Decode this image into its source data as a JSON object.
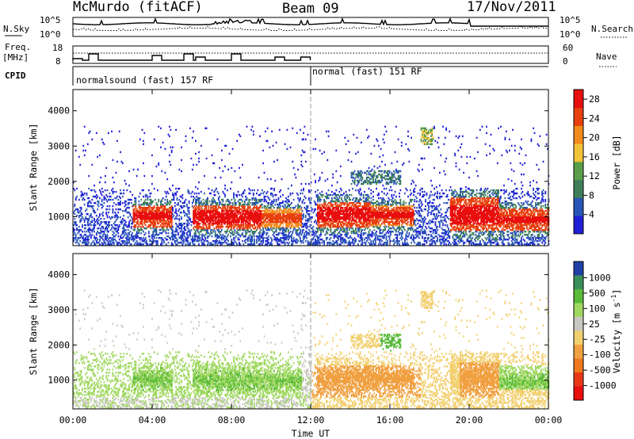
{
  "header": {
    "station": "McMurdo (fitACF)",
    "beam": "Beam 09",
    "date": "17/Nov/2011"
  },
  "top_panels": {
    "nsky_label": "N.Sky",
    "nsearch_label": "N.Search",
    "noise_ticks_left": [
      "10^5",
      "10^0"
    ],
    "noise_ticks_right": [
      "10^5",
      "10^0"
    ],
    "freq_label_1": "Freq.",
    "freq_label_2": "[MHz]",
    "freq_ticks": [
      "18",
      "8"
    ],
    "nave_label": "Nave",
    "nave_ticks": [
      "60",
      "0"
    ],
    "cpid_label": "CPID",
    "cpid_segments": [
      {
        "text": "normalsound (fast) 157 RF",
        "start_hour": 0,
        "end_hour": 12
      },
      {
        "text": "normal (fast) 151 RF",
        "start_hour": 12,
        "end_hour": 24
      }
    ]
  },
  "colors": {
    "power_scale": [
      "#1f1fd8",
      "#2a55b8",
      "#3e7f5a",
      "#5a9e4a",
      "#f2c238",
      "#f28a1c",
      "#e8400f",
      "#e80f0f"
    ],
    "velocity_scale": [
      "#2040a8",
      "#3a8e5a",
      "#5aba3a",
      "#a0d860",
      "#c8c8c0",
      "#f2d070",
      "#f0a040",
      "#f07820",
      "#e83818",
      "#e80f0f"
    ]
  },
  "chart_data": [
    {
      "type": "heatmap",
      "title": "",
      "parameter": "Power",
      "xlabel": "",
      "ylabel": "Slant Range [km]",
      "xlim_hours": [
        0,
        24
      ],
      "ylim_km": [
        180,
        4600
      ],
      "y_ticks": [
        "1000",
        "2000",
        "3000",
        "4000"
      ],
      "colorbar_label": "Power [dB]",
      "colorbar_ticks": [
        "4",
        "8",
        "12",
        "16",
        "20",
        "24",
        "28"
      ],
      "colorbar_range": [
        0,
        30
      ],
      "scatter_region_km": [
        180,
        3500
      ],
      "strong_layer": {
        "description_values": [
          {
            "hour_range": [
              3.0,
              5.0
            ],
            "range_km": [
              700,
              1300
            ],
            "power_db": [
              20,
              28
            ]
          },
          {
            "hour_range": [
              6.0,
              9.5
            ],
            "range_km": [
              650,
              1300
            ],
            "power_db": [
              20,
              30
            ]
          },
          {
            "hour_range": [
              9.5,
              11.5
            ],
            "range_km": [
              700,
              1200
            ],
            "power_db": [
              16,
              26
            ]
          },
          {
            "hour_range": [
              12.3,
              15.0
            ],
            "range_km": [
              700,
              1400
            ],
            "power_db": [
              20,
              30
            ]
          },
          {
            "hour_range": [
              15.0,
              17.2
            ],
            "range_km": [
              750,
              1300
            ],
            "power_db": [
              18,
              28
            ]
          },
          {
            "hour_range": [
              19.0,
              21.5
            ],
            "range_km": [
              600,
              1500
            ],
            "power_db": [
              20,
              30
            ]
          },
          {
            "hour_range": [
              21.5,
              24.0
            ],
            "range_km": [
              600,
              1200
            ],
            "power_db": [
              20,
              28
            ]
          }
        ]
      }
    },
    {
      "type": "heatmap",
      "title": "",
      "parameter": "Velocity",
      "xlabel": "Time UT",
      "ylabel": "Slant Range [km]",
      "xlim_hours": [
        0,
        24
      ],
      "ylim_km": [
        180,
        4600
      ],
      "x_ticks": [
        "00:00",
        "04:00",
        "08:00",
        "12:00",
        "16:00",
        "20:00",
        "00:00"
      ],
      "y_ticks": [
        "1000",
        "2000",
        "3000",
        "4000"
      ],
      "colorbar_label": "Velocity [m s",
      "colorbar_label_sup": "-1",
      "colorbar_label_end": "]",
      "colorbar_ticks": [
        "1000",
        "500",
        "100",
        "25",
        "-25",
        "-100",
        "-500",
        "-1000"
      ],
      "velocity_regions": [
        {
          "hour_range": [
            0,
            11.5
          ],
          "range_km": [
            500,
            1800
          ],
          "velocity_ms": [
            50,
            150
          ]
        },
        {
          "hour_range": [
            12,
            17.5
          ],
          "range_km": [
            500,
            1400
          ],
          "velocity_ms": [
            -200,
            -100
          ]
        },
        {
          "hour_range": [
            15.5,
            17.0
          ],
          "range_km": [
            1800,
            2300
          ],
          "velocity_ms": [
            100,
            300
          ]
        },
        {
          "hour_range": [
            19.5,
            21.5
          ],
          "range_km": [
            500,
            1500
          ],
          "velocity_ms": [
            -200,
            -100
          ]
        },
        {
          "hour_range": [
            21.5,
            24.0
          ],
          "range_km": [
            700,
            1400
          ],
          "velocity_ms": [
            50,
            150
          ]
        }
      ]
    }
  ]
}
